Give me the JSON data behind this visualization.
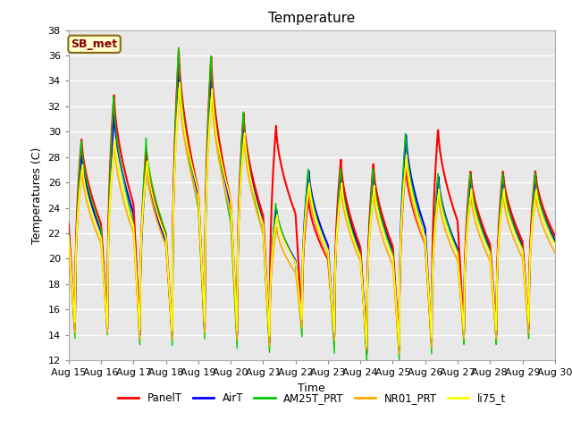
{
  "title": "Temperature",
  "ylabel": "Temperatures (C)",
  "xlabel": "Time",
  "ylim": [
    12,
    38
  ],
  "bg_color": "#e8e8e8",
  "series": [
    "PanelT",
    "AirT",
    "AM25T_PRT",
    "NR01_PRT",
    "li75_t"
  ],
  "colors": [
    "#ff0000",
    "#0000ff",
    "#00cc00",
    "#ffaa00",
    "#ffff00"
  ],
  "annotation_text": "SB_met",
  "annotation_color": "#8b0000",
  "annotation_bg": "#ffffcc",
  "annotation_border": "#8b6914",
  "xtick_labels": [
    "Aug 15",
    "Aug 16",
    "Aug 17",
    "Aug 18",
    "Aug 19",
    "Aug 20",
    "Aug 21",
    "Aug 22",
    "Aug 23",
    "Aug 24",
    "Aug 25",
    "Aug 26",
    "Aug 27",
    "Aug 28",
    "Aug 29",
    "Aug 30"
  ],
  "n_days": 15,
  "peaks_panelT": [
    29.5,
    33.0,
    28.5,
    36.5,
    36.0,
    31.5,
    30.5,
    24.8,
    27.8,
    27.5,
    27.4,
    30.3,
    27.0,
    27.0,
    27.0,
    27.0
  ],
  "peaks_green": [
    29.3,
    32.8,
    29.5,
    36.8,
    36.2,
    31.8,
    24.5,
    27.2,
    27.2,
    27.2,
    30.0,
    26.8,
    26.8,
    26.8,
    26.8,
    26.8
  ],
  "peaks_orange": [
    27.0,
    29.0,
    27.2,
    33.5,
    33.0,
    29.5,
    22.5,
    25.5,
    25.5,
    25.2,
    27.8,
    25.0,
    25.0,
    25.0,
    25.0,
    25.0
  ],
  "peaks_yellow": [
    27.5,
    29.5,
    27.8,
    34.0,
    33.5,
    30.0,
    23.5,
    26.0,
    26.0,
    25.8,
    28.2,
    25.5,
    25.5,
    25.5,
    25.5,
    25.5
  ],
  "peaks_blue": [
    28.5,
    31.5,
    27.5,
    35.5,
    35.0,
    30.8,
    24.0,
    27.0,
    27.0,
    27.0,
    29.8,
    26.5,
    26.5,
    26.5,
    26.5,
    26.5
  ],
  "mins_all": [
    14.5,
    14.5,
    14.0,
    14.0,
    14.5,
    14.0,
    13.5,
    15.0,
    14.0,
    12.5,
    13.0,
    13.5,
    14.0,
    14.0,
    14.5,
    15.5
  ],
  "mins_green": [
    13.5,
    13.8,
    13.0,
    13.0,
    13.5,
    12.8,
    12.5,
    13.8,
    12.5,
    11.8,
    12.0,
    12.5,
    13.0,
    13.0,
    13.5,
    14.5
  ],
  "mins_orange": [
    14.0,
    14.0,
    13.5,
    13.5,
    14.0,
    13.5,
    13.0,
    14.5,
    13.5,
    12.8,
    12.5,
    13.0,
    13.5,
    13.5,
    14.0,
    15.0
  ],
  "mins_yellow": [
    14.8,
    14.5,
    14.2,
    14.2,
    14.8,
    14.2,
    13.8,
    15.2,
    14.2,
    13.0,
    13.2,
    13.8,
    14.2,
    14.2,
    14.8,
    15.8
  ],
  "mins_blue": [
    14.3,
    14.3,
    13.8,
    13.8,
    14.3,
    13.8,
    13.3,
    14.8,
    13.8,
    12.8,
    12.8,
    13.3,
    13.8,
    13.8,
    14.3,
    15.3
  ],
  "start_temps": [
    15.5,
    16.0,
    15.0,
    15.5,
    15.0,
    15.0,
    16.5,
    19.0,
    15.5,
    15.0,
    14.5,
    14.8,
    15.0,
    15.0,
    15.5,
    15.5
  ]
}
